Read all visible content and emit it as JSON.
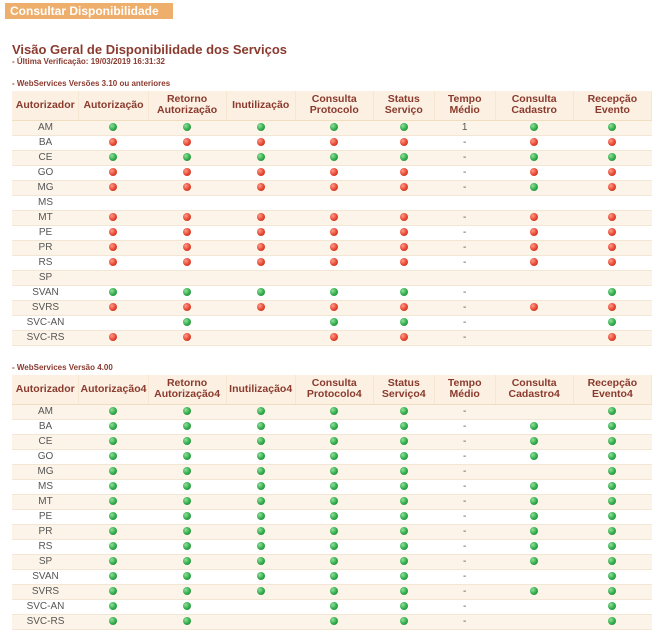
{
  "header_tab": "Consultar Disponibilidade",
  "page_title": "Visão Geral de Disponibilidade dos Serviços",
  "last_check": "- Última Verificação: 19/03/2019 16:31:32",
  "section1": {
    "title": "- WebServices Versões 3.10 ou anteriores",
    "columns": [
      "Autorizador",
      "Autorização",
      "Retorno Autorização",
      "Inutilização",
      "Consulta Protocolo",
      "Status Serviço",
      "Tempo Médio",
      "Consulta Cadastro",
      "Recepção Evento"
    ],
    "rows": [
      [
        "AM",
        "green",
        "green",
        "green",
        "green",
        "green",
        "1",
        "green",
        "green"
      ],
      [
        "BA",
        "red",
        "red",
        "red",
        "red",
        "red",
        "-",
        "red",
        "red"
      ],
      [
        "CE",
        "green",
        "green",
        "green",
        "green",
        "green",
        "-",
        "green",
        "green"
      ],
      [
        "GO",
        "red",
        "red",
        "red",
        "red",
        "red",
        "-",
        "red",
        "red"
      ],
      [
        "MG",
        "red",
        "red",
        "red",
        "red",
        "red",
        "-",
        "green",
        "red"
      ],
      [
        "MS",
        "",
        "",
        "",
        "",
        "",
        "",
        "",
        ""
      ],
      [
        "MT",
        "red",
        "red",
        "red",
        "red",
        "red",
        "-",
        "red",
        "red"
      ],
      [
        "PE",
        "red",
        "red",
        "red",
        "red",
        "red",
        "-",
        "red",
        "red"
      ],
      [
        "PR",
        "red",
        "red",
        "red",
        "red",
        "red",
        "-",
        "red",
        "red"
      ],
      [
        "RS",
        "red",
        "red",
        "red",
        "red",
        "red",
        "-",
        "red",
        "red"
      ],
      [
        "SP",
        "",
        "",
        "",
        "",
        "",
        "",
        "",
        ""
      ],
      [
        "SVAN",
        "green",
        "green",
        "green",
        "green",
        "green",
        "-",
        "",
        "green"
      ],
      [
        "SVRS",
        "red",
        "red",
        "red",
        "red",
        "red",
        "-",
        "red",
        "red"
      ],
      [
        "SVC-AN",
        "",
        "green",
        "",
        "green",
        "green",
        "-",
        "",
        "green"
      ],
      [
        "SVC-RS",
        "red",
        "red",
        "",
        "red",
        "red",
        "-",
        "",
        "red"
      ]
    ]
  },
  "section2": {
    "title": "- WebServices Versão 4.00",
    "columns": [
      "Autorizador",
      "Autorização4",
      "Retorno Autorização4",
      "Inutilização4",
      "Consulta Protocolo4",
      "Status Serviço4",
      "Tempo Médio",
      "Consulta Cadastro4",
      "Recepção Evento4"
    ],
    "rows": [
      [
        "AM",
        "green",
        "green",
        "green",
        "green",
        "green",
        "-",
        "",
        "green"
      ],
      [
        "BA",
        "green",
        "green",
        "green",
        "green",
        "green",
        "-",
        "green",
        "green"
      ],
      [
        "CE",
        "green",
        "green",
        "green",
        "green",
        "green",
        "-",
        "green",
        "green"
      ],
      [
        "GO",
        "green",
        "green",
        "green",
        "green",
        "green",
        "-",
        "green",
        "green"
      ],
      [
        "MG",
        "green",
        "green",
        "green",
        "green",
        "green",
        "-",
        "",
        "green"
      ],
      [
        "MS",
        "green",
        "green",
        "green",
        "green",
        "green",
        "-",
        "green",
        "green"
      ],
      [
        "MT",
        "green",
        "green",
        "green",
        "green",
        "green",
        "-",
        "green",
        "green"
      ],
      [
        "PE",
        "green",
        "green",
        "green",
        "green",
        "green",
        "-",
        "green",
        "green"
      ],
      [
        "PR",
        "green",
        "green",
        "green",
        "green",
        "green",
        "-",
        "green",
        "green"
      ],
      [
        "RS",
        "green",
        "green",
        "green",
        "green",
        "green",
        "-",
        "green",
        "green"
      ],
      [
        "SP",
        "green",
        "green",
        "green",
        "green",
        "green",
        "-",
        "green",
        "green"
      ],
      [
        "SVAN",
        "green",
        "green",
        "green",
        "green",
        "green",
        "-",
        "",
        "green"
      ],
      [
        "SVRS",
        "green",
        "green",
        "green",
        "green",
        "green",
        "-",
        "green",
        "green"
      ],
      [
        "SVC-AN",
        "green",
        "green",
        "",
        "green",
        "green",
        "-",
        "",
        "green"
      ],
      [
        "SVC-RS",
        "green",
        "green",
        "",
        "green",
        "green",
        "-",
        "",
        "green"
      ]
    ]
  },
  "colors": {
    "accent": "#eeae6c",
    "title_text": "#8b3a2e",
    "row_tint": "#fdf4e9",
    "status_green": "#2faa49",
    "status_red": "#e5452f"
  }
}
